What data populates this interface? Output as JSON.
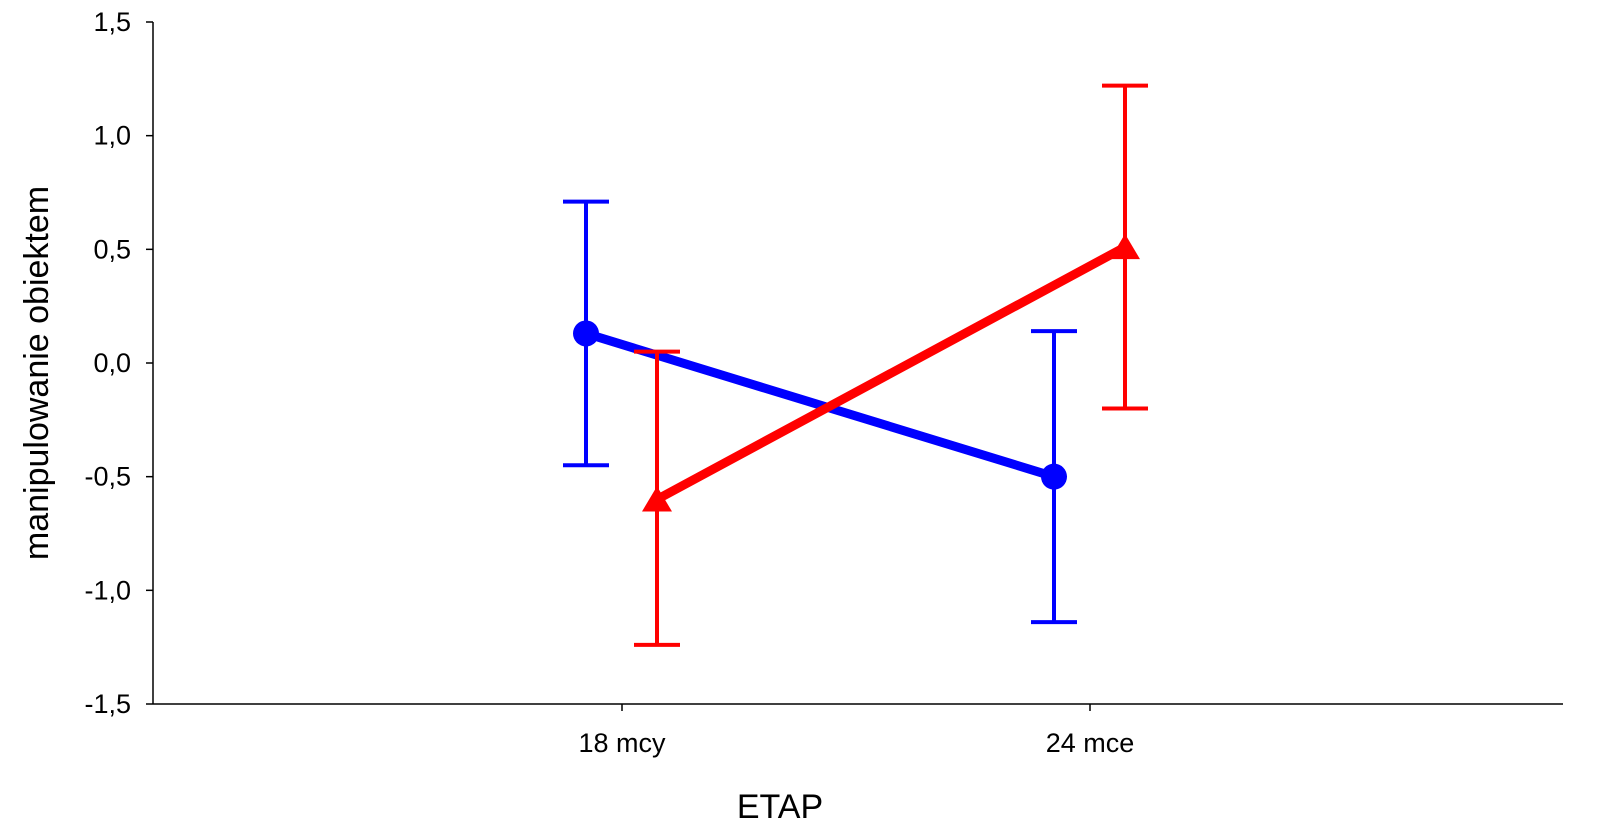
{
  "chart_data": {
    "type": "line",
    "title": "",
    "xlabel": "ETAP",
    "ylabel": "manipulowanie obiektem",
    "categories": [
      "18 mcy",
      "24 mce"
    ],
    "ylim": [
      -1.5,
      1.5
    ],
    "yticks": [
      1.5,
      1.0,
      0.5,
      0.0,
      -0.5,
      -1.0,
      -1.5
    ],
    "ytick_labels": [
      "1,5",
      "1,0",
      "0,5",
      "0,0",
      "-0,5",
      "-1,0",
      "-1,5"
    ],
    "grid": false,
    "legend": "none",
    "series": [
      {
        "marker": "circle",
        "color": "#0000ff",
        "values": [
          0.13,
          -0.5
        ],
        "error_low": [
          -0.45,
          -1.14
        ],
        "error_high": [
          0.71,
          0.14
        ]
      },
      {
        "marker": "triangle",
        "color": "#ff0000",
        "values": [
          -0.6,
          0.51
        ],
        "error_low": [
          -1.24,
          -0.2
        ],
        "error_high": [
          0.05,
          1.22
        ]
      }
    ]
  }
}
